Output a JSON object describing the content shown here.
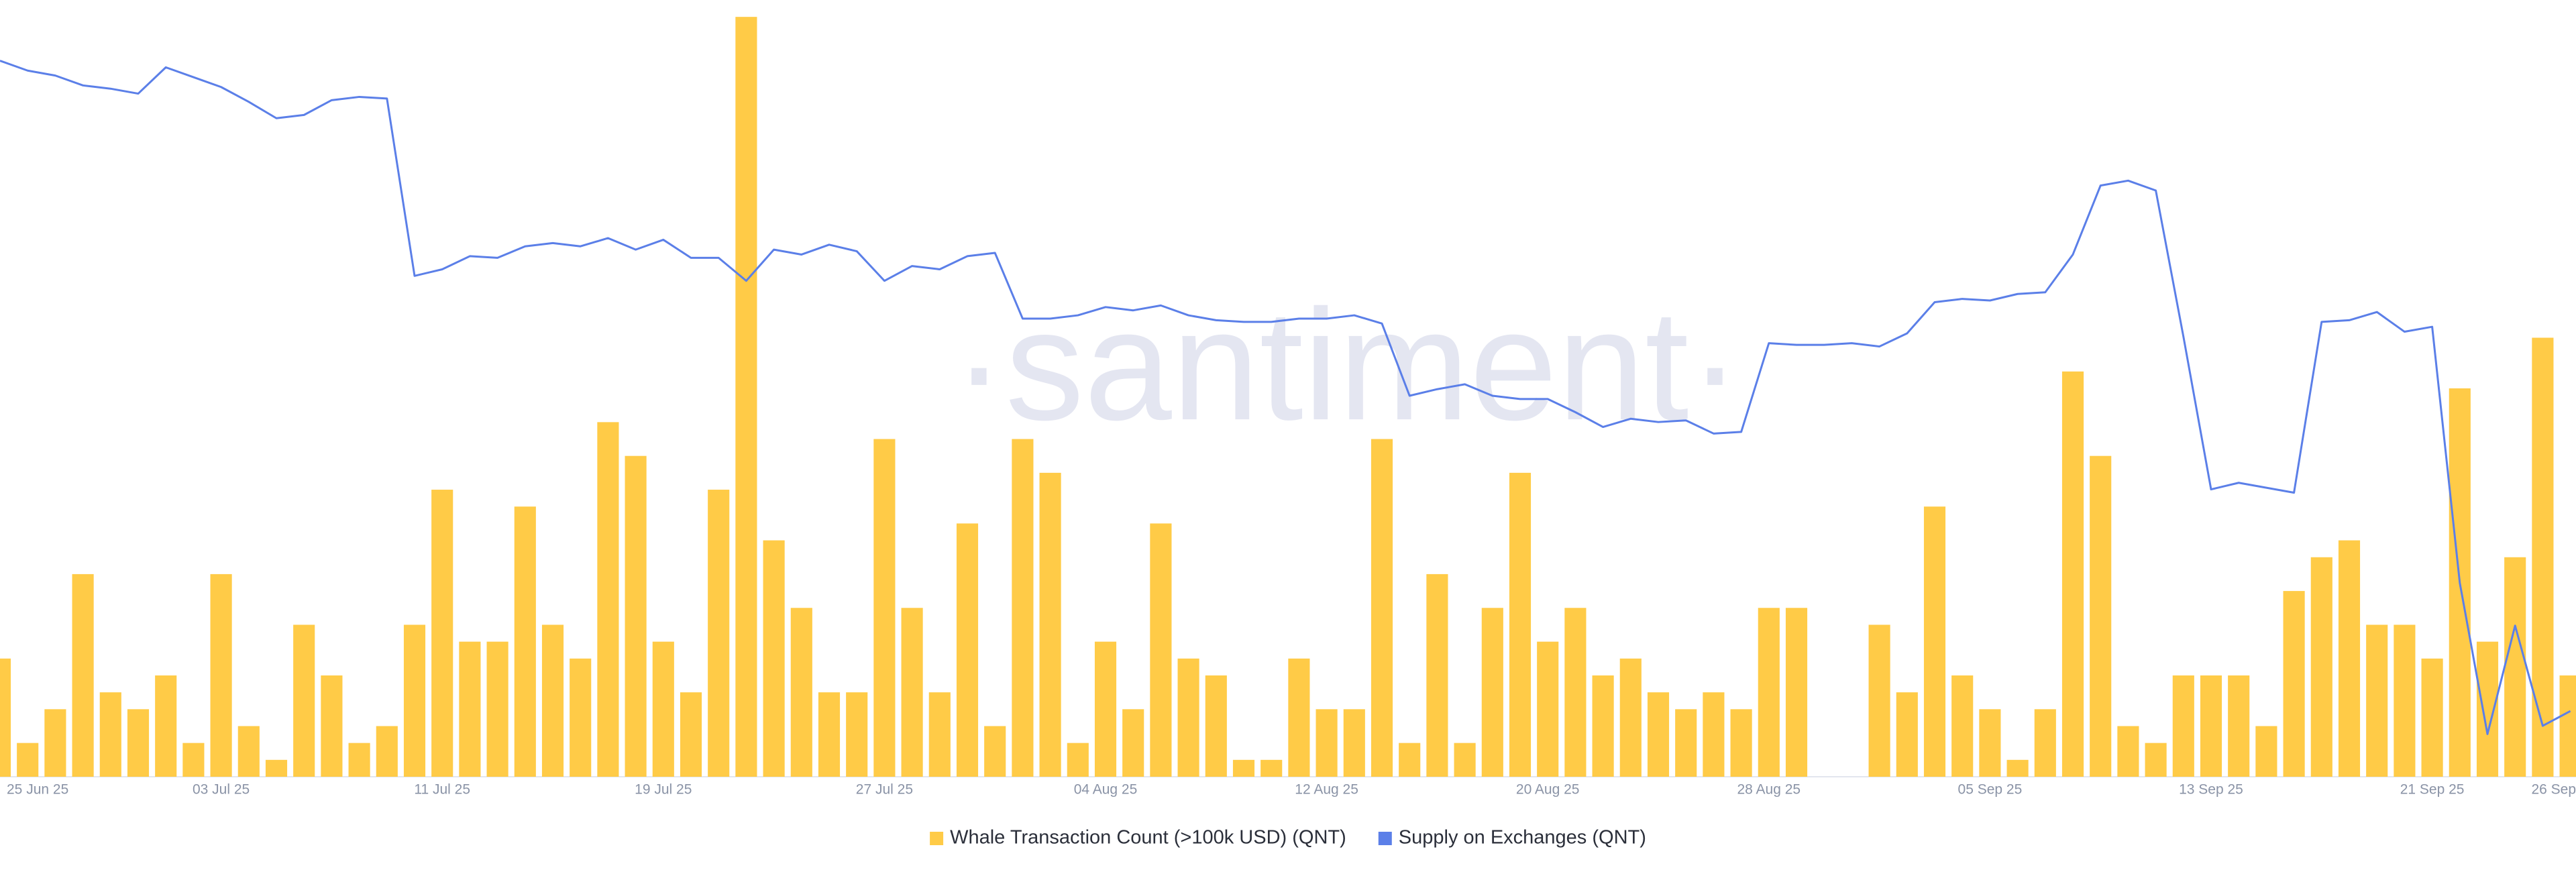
{
  "chart_data": {
    "type": "combo",
    "watermark": "·santiment·",
    "categories": [
      "25 Jun 25",
      null,
      null,
      null,
      null,
      null,
      null,
      null,
      "03 Jul 25",
      null,
      null,
      null,
      null,
      null,
      null,
      null,
      "11 Jul 25",
      null,
      null,
      null,
      null,
      null,
      null,
      null,
      "19 Jul 25",
      null,
      null,
      null,
      null,
      null,
      null,
      null,
      "27 Jul 25",
      null,
      null,
      null,
      null,
      null,
      null,
      null,
      "04 Aug 25",
      null,
      null,
      null,
      null,
      null,
      null,
      null,
      "12 Aug 25",
      null,
      null,
      null,
      null,
      null,
      null,
      null,
      "20 Aug 25",
      null,
      null,
      null,
      null,
      null,
      null,
      null,
      "28 Aug 25",
      null,
      null,
      null,
      null,
      null,
      null,
      null,
      "05 Sep 25",
      null,
      null,
      null,
      null,
      null,
      null,
      null,
      "13 Sep 25",
      null,
      null,
      null,
      null,
      null,
      null,
      null,
      "21 Sep 25",
      null,
      null,
      null,
      null,
      "26 Sep"
    ],
    "ylim": [
      0,
      46
    ],
    "y2lim": [
      0,
      473
    ],
    "legend": "bottom",
    "series": [
      {
        "name": "Whale Transaction Count (>100k USD) (QNT)",
        "type": "bar",
        "color": "#ffcb47",
        "values": [
          7,
          2,
          4,
          12,
          5,
          4,
          6,
          2,
          12,
          3,
          1,
          9,
          6,
          2,
          3,
          9,
          17,
          8,
          8,
          16,
          9,
          7,
          21,
          19,
          8,
          5,
          17,
          45,
          14,
          10,
          5,
          5,
          20,
          10,
          5,
          15,
          3,
          20,
          18,
          2,
          8,
          4,
          15,
          7,
          6,
          1,
          1,
          7,
          4,
          4,
          20,
          2,
          12,
          2,
          10,
          18,
          8,
          10,
          6,
          7,
          5,
          4,
          5,
          4,
          10,
          10,
          0,
          0,
          9,
          5,
          16,
          6,
          4,
          1,
          4,
          24,
          19,
          3,
          2,
          6,
          6,
          6,
          3,
          11,
          13,
          14,
          9,
          9,
          7,
          23,
          8,
          13,
          26,
          6
        ]
      },
      {
        "name": "Supply on Exchanges (QNT)",
        "type": "line",
        "axis": "y2",
        "color": "#5b7fe8",
        "values": [
          436,
          430,
          427,
          421,
          419,
          416,
          432,
          426,
          420,
          411,
          401,
          403,
          412,
          414,
          413,
          305,
          309,
          317,
          316,
          323,
          325,
          323,
          328,
          321,
          327,
          316,
          316,
          302,
          321,
          318,
          324,
          320,
          302,
          311,
          309,
          317,
          319,
          279,
          279,
          281,
          286,
          284,
          287,
          281,
          278,
          277,
          277,
          279,
          279,
          281,
          276,
          232,
          236,
          239,
          232,
          230,
          230,
          222,
          213,
          218,
          216,
          217,
          209,
          210,
          264,
          263,
          263,
          264,
          262,
          270,
          289,
          291,
          290,
          294,
          295,
          318,
          360,
          363,
          357,
          268,
          175,
          179,
          176,
          173,
          277,
          278,
          283,
          271,
          274,
          118,
          26,
          92,
          31,
          40
        ]
      }
    ]
  }
}
